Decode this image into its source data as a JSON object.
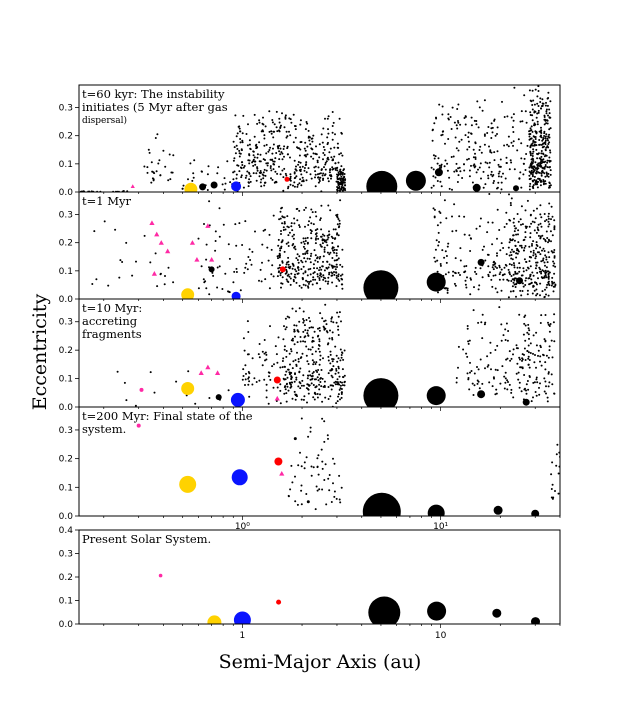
{
  "chart_data": {
    "type": "scatter",
    "xlabel": "Semi-Major Axis (au)",
    "ylabel": "Eccentricity",
    "xscale": "log",
    "xlim": [
      0.15,
      40
    ],
    "x_ticks": [
      {
        "value": 1,
        "label": "10⁰"
      },
      {
        "value": 10,
        "label": "10¹"
      }
    ],
    "x_ticks_bottom": [
      {
        "value": 1,
        "label": "1"
      },
      {
        "value": 10,
        "label": "10"
      }
    ],
    "panels": [
      {
        "id": "p1",
        "annotation": [
          "t=60 kyr: The instability",
          "initiates (5 Myr after gas"
        ],
        "annotation_small": "dispersal)",
        "ylim": [
          0,
          0.38
        ],
        "yticks": [
          {
            "v": 0.0,
            "l": "0.0"
          },
          {
            "v": 0.1,
            "l": "0.1"
          },
          {
            "v": 0.2,
            "l": "0.2"
          },
          {
            "v": 0.3,
            "l": "0.3"
          }
        ],
        "clouds": [
          {
            "xmin": 0.15,
            "xmax": 0.3,
            "emin": 0,
            "emax": 0.004,
            "n": 18,
            "seed": 11
          },
          {
            "xmin": 0.32,
            "xmax": 0.45,
            "emin": 0.0,
            "emax": 0.23,
            "n": 28,
            "seed": 12
          },
          {
            "xmin": 0.45,
            "xmax": 0.9,
            "emin": 0.0,
            "emax": 0.12,
            "n": 28,
            "seed": 13
          },
          {
            "xmin": 0.9,
            "xmax": 3.2,
            "emin": 0.0,
            "emax": 0.3,
            "n": 430,
            "seed": 14
          },
          {
            "xmin": 3.0,
            "xmax": 3.3,
            "emin": 0.0,
            "emax": 0.09,
            "n": 80,
            "seed": 15
          },
          {
            "xmin": 9,
            "xmax": 30,
            "emin": 0.0,
            "emax": 0.38,
            "n": 240,
            "seed": 16
          },
          {
            "xmin": 28,
            "xmax": 36,
            "emin": 0.0,
            "emax": 0.38,
            "n": 300,
            "seed": 17
          }
        ],
        "bodies": [
          {
            "a": 0.28,
            "e": 0.02,
            "r": 1.5,
            "c": "#ff2aa5",
            "s": "tri"
          },
          {
            "a": 0.55,
            "e": 0.01,
            "r": 6.5,
            "c": "#ffd200",
            "s": "circle"
          },
          {
            "a": 0.63,
            "e": 0.018,
            "r": 3.5,
            "c": "#000000",
            "s": "circle"
          },
          {
            "a": 0.72,
            "e": 0.025,
            "r": 3.5,
            "c": "#000000",
            "s": "circle"
          },
          {
            "a": 0.93,
            "e": 0.02,
            "r": 5,
            "c": "#0a14ff",
            "s": "circle"
          },
          {
            "a": 1.68,
            "e": 0.045,
            "r": 2.5,
            "c": "#ff0000",
            "s": "circle"
          },
          {
            "a": 5.05,
            "e": 0.02,
            "r": 15.5,
            "c": "#000000",
            "s": "circle"
          },
          {
            "a": 7.5,
            "e": 0.04,
            "r": 10,
            "c": "#000000",
            "s": "circle"
          },
          {
            "a": 9.8,
            "e": 0.07,
            "r": 4,
            "c": "#000000",
            "s": "circle"
          },
          {
            "a": 15.2,
            "e": 0.015,
            "r": 4,
            "c": "#000000",
            "s": "circle"
          },
          {
            "a": 24,
            "e": 0.013,
            "r": 3,
            "c": "#000000",
            "s": "circle"
          }
        ]
      },
      {
        "id": "p2",
        "annotation": [
          "t=1 Myr"
        ],
        "annotation_small": "",
        "ylim": [
          0,
          0.38
        ],
        "yticks": [
          {
            "v": 0.0,
            "l": "0.0"
          },
          {
            "v": 0.1,
            "l": "0.1"
          },
          {
            "v": 0.2,
            "l": "0.2"
          },
          {
            "v": 0.3,
            "l": "0.3"
          }
        ],
        "clouds": [
          {
            "xmin": 0.15,
            "xmax": 0.6,
            "emin": 0.02,
            "emax": 0.3,
            "n": 22,
            "seed": 21
          },
          {
            "xmin": 0.6,
            "xmax": 1.5,
            "emin": 0.0,
            "emax": 0.36,
            "n": 70,
            "seed": 22
          },
          {
            "xmin": 1.5,
            "xmax": 3.2,
            "emin": 0.03,
            "emax": 0.36,
            "n": 360,
            "seed": 23
          },
          {
            "xmin": 9,
            "xmax": 25,
            "emin": 0.0,
            "emax": 0.38,
            "n": 160,
            "seed": 24
          },
          {
            "xmin": 22,
            "xmax": 38,
            "emin": 0.0,
            "emax": 0.38,
            "n": 300,
            "seed": 25
          }
        ],
        "bodies": [
          {
            "a": 0.35,
            "e": 0.27,
            "r": 2,
            "c": "#ff2aa5",
            "s": "tri"
          },
          {
            "a": 0.37,
            "e": 0.23,
            "r": 2,
            "c": "#ff2aa5",
            "s": "tri"
          },
          {
            "a": 0.39,
            "e": 0.2,
            "r": 2,
            "c": "#ff2aa5",
            "s": "tri"
          },
          {
            "a": 0.42,
            "e": 0.17,
            "r": 2,
            "c": "#ff2aa5",
            "s": "tri"
          },
          {
            "a": 0.36,
            "e": 0.09,
            "r": 2,
            "c": "#ff2aa5",
            "s": "tri"
          },
          {
            "a": 0.56,
            "e": 0.2,
            "r": 2,
            "c": "#ff2aa5",
            "s": "tri"
          },
          {
            "a": 0.59,
            "e": 0.14,
            "r": 2,
            "c": "#ff2aa5",
            "s": "tri"
          },
          {
            "a": 0.67,
            "e": 0.26,
            "r": 2,
            "c": "#ff2aa5",
            "s": "tri"
          },
          {
            "a": 0.7,
            "e": 0.14,
            "r": 2,
            "c": "#ff2aa5",
            "s": "tri"
          },
          {
            "a": 0.53,
            "e": 0.015,
            "r": 6.5,
            "c": "#ffd200",
            "s": "circle"
          },
          {
            "a": 0.7,
            "e": 0.105,
            "r": 3,
            "c": "#000000",
            "s": "circle"
          },
          {
            "a": 0.93,
            "e": 0.01,
            "r": 4.5,
            "c": "#0a14ff",
            "s": "circle"
          },
          {
            "a": 1.6,
            "e": 0.105,
            "r": 3,
            "c": "#ff0000",
            "s": "circle"
          },
          {
            "a": 5.0,
            "e": 0.04,
            "r": 17.5,
            "c": "#000000",
            "s": "circle"
          },
          {
            "a": 9.5,
            "e": 0.06,
            "r": 9.5,
            "c": "#000000",
            "s": "circle"
          },
          {
            "a": 16,
            "e": 0.13,
            "r": 3.5,
            "c": "#000000",
            "s": "circle"
          },
          {
            "a": 25,
            "e": 0.065,
            "r": 3.5,
            "c": "#000000",
            "s": "circle"
          }
        ]
      },
      {
        "id": "p3",
        "annotation": [
          "t=10 Myr:",
          "accreting",
          "fragments"
        ],
        "annotation_small": "",
        "ylim": [
          0,
          0.38
        ],
        "yticks": [
          {
            "v": 0.0,
            "l": "0.0"
          },
          {
            "v": 0.1,
            "l": "0.1"
          },
          {
            "v": 0.2,
            "l": "0.2"
          },
          {
            "v": 0.3,
            "l": "0.3"
          }
        ],
        "clouds": [
          {
            "xmin": 0.2,
            "xmax": 0.9,
            "emin": 0.0,
            "emax": 0.15,
            "n": 14,
            "seed": 31
          },
          {
            "xmin": 1.0,
            "xmax": 1.6,
            "emin": 0.0,
            "emax": 0.34,
            "n": 60,
            "seed": 32
          },
          {
            "xmin": 1.6,
            "xmax": 3.3,
            "emin": 0.0,
            "emax": 0.38,
            "n": 330,
            "seed": 33
          },
          {
            "xmin": 12,
            "xmax": 28,
            "emin": 0.02,
            "emax": 0.38,
            "n": 110,
            "seed": 34
          },
          {
            "xmin": 25,
            "xmax": 38,
            "emin": 0.0,
            "emax": 0.38,
            "n": 100,
            "seed": 35
          }
        ],
        "bodies": [
          {
            "a": 0.31,
            "e": 0.06,
            "r": 2,
            "c": "#ff2aa5",
            "s": "circle"
          },
          {
            "a": 0.62,
            "e": 0.12,
            "r": 2,
            "c": "#ff2aa5",
            "s": "tri"
          },
          {
            "a": 0.67,
            "e": 0.14,
            "r": 2,
            "c": "#ff2aa5",
            "s": "tri"
          },
          {
            "a": 0.75,
            "e": 0.12,
            "r": 2,
            "c": "#ff2aa5",
            "s": "tri"
          },
          {
            "a": 1.5,
            "e": 0.03,
            "r": 2,
            "c": "#ff2aa5",
            "s": "tri"
          },
          {
            "a": 0.53,
            "e": 0.065,
            "r": 6.5,
            "c": "#ffd200",
            "s": "circle"
          },
          {
            "a": 0.76,
            "e": 0.035,
            "r": 3,
            "c": "#000000",
            "s": "circle"
          },
          {
            "a": 0.95,
            "e": 0.025,
            "r": 7,
            "c": "#0a14ff",
            "s": "circle"
          },
          {
            "a": 1.5,
            "e": 0.095,
            "r": 3.5,
            "c": "#ff0000",
            "s": "circle"
          },
          {
            "a": 5.0,
            "e": 0.04,
            "r": 17.5,
            "c": "#000000",
            "s": "circle"
          },
          {
            "a": 9.5,
            "e": 0.04,
            "r": 9.5,
            "c": "#000000",
            "s": "circle"
          },
          {
            "a": 16,
            "e": 0.045,
            "r": 4,
            "c": "#000000",
            "s": "circle"
          },
          {
            "a": 27,
            "e": 0.017,
            "r": 3.5,
            "c": "#000000",
            "s": "circle"
          }
        ]
      },
      {
        "id": "p4",
        "annotation": [
          "t=200 Myr: Final state of the",
          "system."
        ],
        "annotation_small": "",
        "ylim": [
          0,
          0.38
        ],
        "yticks": [
          {
            "v": 0.0,
            "l": "0.0"
          },
          {
            "v": 0.1,
            "l": "0.1"
          },
          {
            "v": 0.2,
            "l": "0.2"
          },
          {
            "v": 0.3,
            "l": "0.3"
          }
        ],
        "clouds": [
          {
            "xmin": 1.7,
            "xmax": 3.2,
            "emin": 0.02,
            "emax": 0.35,
            "n": 60,
            "seed": 41
          },
          {
            "xmin": 36,
            "xmax": 40,
            "emin": 0.02,
            "emax": 0.29,
            "n": 16,
            "seed": 42
          }
        ],
        "bodies": [
          {
            "a": 0.3,
            "e": 0.315,
            "r": 2,
            "c": "#ff2aa5",
            "s": "circle"
          },
          {
            "a": 1.58,
            "e": 0.148,
            "r": 2,
            "c": "#ff2aa5",
            "s": "tri"
          },
          {
            "a": 0.53,
            "e": 0.11,
            "r": 8.5,
            "c": "#ffd200",
            "s": "circle"
          },
          {
            "a": 0.97,
            "e": 0.135,
            "r": 8,
            "c": "#0a14ff",
            "s": "circle"
          },
          {
            "a": 1.52,
            "e": 0.19,
            "r": 4,
            "c": "#ff0000",
            "s": "circle"
          },
          {
            "a": 1.85,
            "e": 0.27,
            "r": 1.5,
            "c": "#000000",
            "s": "circle"
          },
          {
            "a": 2.15,
            "e": 0.05,
            "r": 1.5,
            "c": "#000000",
            "s": "circle"
          },
          {
            "a": 5.05,
            "e": 0.015,
            "r": 19,
            "c": "#000000",
            "s": "circle"
          },
          {
            "a": 9.5,
            "e": 0.01,
            "r": 8.5,
            "c": "#000000",
            "s": "circle"
          },
          {
            "a": 19.5,
            "e": 0.02,
            "r": 4.5,
            "c": "#000000",
            "s": "circle"
          },
          {
            "a": 30,
            "e": 0.008,
            "r": 4,
            "c": "#000000",
            "s": "circle"
          }
        ]
      },
      {
        "id": "p5",
        "annotation": [
          "Present Solar System."
        ],
        "annotation_small": "",
        "ylim": [
          0,
          0.4
        ],
        "yticks": [
          {
            "v": 0.0,
            "l": "0.0"
          },
          {
            "v": 0.1,
            "l": "0.1"
          },
          {
            "v": 0.2,
            "l": "0.2"
          },
          {
            "v": 0.3,
            "l": "0.3"
          },
          {
            "v": 0.4,
            "l": "0.4"
          }
        ],
        "clouds": [],
        "bodies": [
          {
            "a": 0.387,
            "e": 0.206,
            "r": 1.8,
            "c": "#ff2aa5",
            "s": "circle"
          },
          {
            "a": 0.723,
            "e": 0.007,
            "r": 7,
            "c": "#ffd200",
            "s": "circle"
          },
          {
            "a": 1.0,
            "e": 0.017,
            "r": 8.5,
            "c": "#0a14ff",
            "s": "circle"
          },
          {
            "a": 1.524,
            "e": 0.093,
            "r": 2.5,
            "c": "#ff0000",
            "s": "circle"
          },
          {
            "a": 5.2,
            "e": 0.049,
            "r": 16,
            "c": "#000000",
            "s": "circle"
          },
          {
            "a": 9.54,
            "e": 0.055,
            "r": 9.5,
            "c": "#000000",
            "s": "circle"
          },
          {
            "a": 19.2,
            "e": 0.046,
            "r": 4.5,
            "c": "#000000",
            "s": "circle"
          },
          {
            "a": 30.1,
            "e": 0.01,
            "r": 4.5,
            "c": "#000000",
            "s": "circle"
          }
        ]
      }
    ]
  }
}
